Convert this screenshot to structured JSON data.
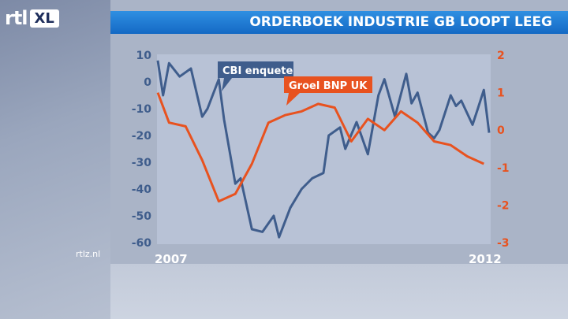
{
  "header": {
    "logo_rtl": "rtl",
    "logo_xl": "XL",
    "title": "ORDERBOEK INDUSTRIE GB LOOPT LEEG"
  },
  "footer": {
    "source": "rtlz.nl"
  },
  "colors": {
    "cbi": "#3f5d8c",
    "bnp": "#e8521f",
    "title_bar": "#1f7bd6",
    "plot_bg": "#b8c2d6"
  },
  "chart_data": {
    "type": "line",
    "title": "ORDERBOEK INDUSTRIE GB LOOPT LEEG",
    "x_start_label": "2007",
    "x_end_label": "2012",
    "left_axis": {
      "ticks": [
        10,
        0,
        -10,
        -20,
        -30,
        -40,
        -50,
        -60
      ],
      "ylim": [
        -60,
        10
      ]
    },
    "right_axis": {
      "ticks": [
        2,
        1,
        0,
        -1,
        -2,
        -3
      ],
      "ylim": [
        -3,
        2
      ]
    },
    "grid": false,
    "series": [
      {
        "name": "CBI enquete",
        "axis": "left",
        "x": [
          2007.0,
          2007.08,
          2007.17,
          2007.33,
          2007.5,
          2007.67,
          2007.75,
          2007.92,
          2008.0,
          2008.17,
          2008.25,
          2008.42,
          2008.58,
          2008.75,
          2008.83,
          2009.0,
          2009.17,
          2009.33,
          2009.5,
          2009.58,
          2009.75,
          2009.83,
          2010.0,
          2010.17,
          2010.33,
          2010.42,
          2010.58,
          2010.75,
          2010.83,
          2010.92,
          2011.08,
          2011.17,
          2011.25,
          2011.42,
          2011.5,
          2011.58,
          2011.75,
          2011.83,
          2011.92,
          2012.0
        ],
        "values": [
          8,
          -5,
          7,
          2,
          5,
          -13,
          -10,
          1,
          -14,
          -38,
          -36,
          -55,
          -56,
          -50,
          -58,
          -47,
          -40,
          -36,
          -34,
          -20,
          -17,
          -25,
          -15,
          -27,
          -5,
          1,
          -13,
          3,
          -8,
          -4,
          -19,
          -21,
          -18,
          -5,
          -9,
          -7,
          -16,
          -10,
          -3,
          -19
        ]
      },
      {
        "name": "Groel BNP UK",
        "axis": "right",
        "x": [
          2007.0,
          2007.17,
          2007.42,
          2007.67,
          2007.92,
          2008.17,
          2008.42,
          2008.67,
          2008.92,
          2009.17,
          2009.42,
          2009.67,
          2009.92,
          2010.17,
          2010.42,
          2010.67,
          2010.92,
          2011.17,
          2011.42,
          2011.67,
          2011.92
        ],
        "values": [
          1.0,
          0.2,
          0.1,
          -0.8,
          -1.9,
          -1.7,
          -0.9,
          0.2,
          0.4,
          0.5,
          0.7,
          0.6,
          -0.3,
          0.3,
          0.0,
          0.5,
          0.2,
          -0.3,
          -0.4,
          -0.7,
          -0.9
        ]
      }
    ],
    "callouts": [
      {
        "series": "CBI enquete",
        "text": "CBI enquete"
      },
      {
        "series": "Groel BNP UK",
        "text": "Groel BNP UK"
      }
    ]
  }
}
